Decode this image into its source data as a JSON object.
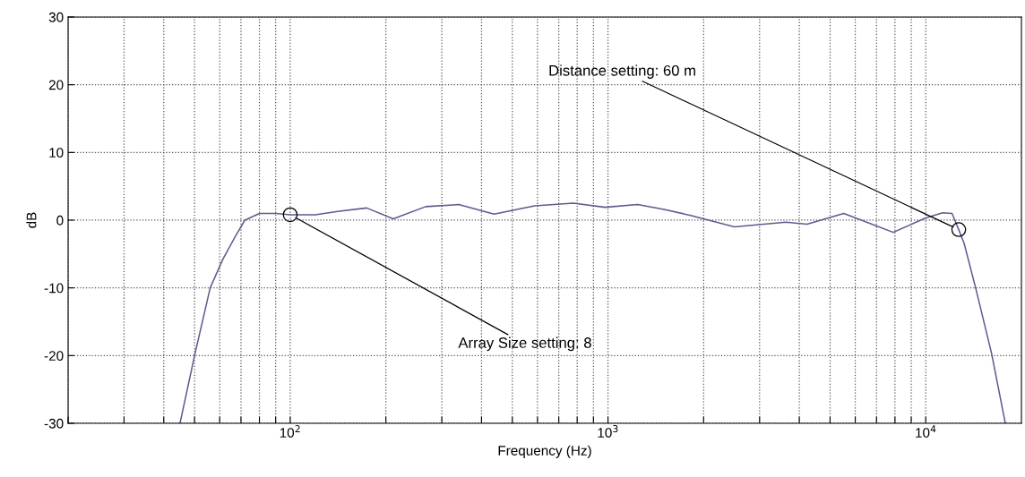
{
  "chart_data": {
    "type": "line",
    "xlabel": "Frequency (Hz)",
    "ylabel": "dB",
    "log": "x",
    "grid": true,
    "marker": "none",
    "line_style": "solid",
    "xlim": [
      20,
      20000
    ],
    "ylim": [
      -30,
      30
    ],
    "xticks": [
      {
        "value": 20,
        "label": null
      },
      {
        "value": 30,
        "label": null
      },
      {
        "value": 40,
        "label": null
      },
      {
        "value": 50,
        "label": null
      },
      {
        "value": 60,
        "label": null
      },
      {
        "value": 70,
        "label": null
      },
      {
        "value": 80,
        "label": null
      },
      {
        "value": 90,
        "label": null
      },
      {
        "value": 100,
        "label": "10$^{2}$"
      },
      {
        "value": 200,
        "label": null
      },
      {
        "value": 300,
        "label": null
      },
      {
        "value": 400,
        "label": null
      },
      {
        "value": 500,
        "label": null
      },
      {
        "value": 600,
        "label": null
      },
      {
        "value": 700,
        "label": null
      },
      {
        "value": 800,
        "label": null
      },
      {
        "value": 900,
        "label": null
      },
      {
        "value": 1000,
        "label": "10$^{3}$"
      },
      {
        "value": 2000,
        "label": null
      },
      {
        "value": 3000,
        "label": null
      },
      {
        "value": 4000,
        "label": null
      },
      {
        "value": 5000,
        "label": null
      },
      {
        "value": 6000,
        "label": null
      },
      {
        "value": 7000,
        "label": null
      },
      {
        "value": 8000,
        "label": null
      },
      {
        "value": 9000,
        "label": null
      },
      {
        "value": 10000,
        "label": "10$^{4}$"
      }
    ],
    "yticks": [
      -30,
      -20,
      -10,
      0,
      10,
      20,
      30
    ],
    "series": [
      {
        "color": "#5c5c8e",
        "x": [
          45,
          50,
          56,
          61.5,
          67,
          72,
          80,
          90,
          100,
          120,
          141,
          174,
          211,
          267,
          339,
          438,
          588,
          777,
          979,
          1240,
          1500,
          1820,
          2500,
          3630,
          4230,
          5520,
          7900,
          9960,
          11300,
          12100,
          12700,
          13200,
          14300,
          16100,
          17800
        ],
        "values": [
          -30,
          -20,
          -10,
          -5.7,
          -2.5,
          0,
          1,
          1,
          0.8,
          0.8,
          1.3,
          1.8,
          0.2,
          2,
          2.3,
          0.9,
          2.1,
          2.5,
          1.9,
          2.3,
          1.6,
          0.7,
          -1,
          -0.3,
          -0.6,
          1,
          -1.8,
          0.3,
          1.1,
          1,
          -1.4,
          -3.4,
          -9.7,
          -19.6,
          -30
        ]
      }
    ],
    "annotations": [
      {
        "text": "Array Size setting: 8",
        "x": 100,
        "y": 0.8
      },
      {
        "text": "Distance setting: 60 m",
        "x": 12700,
        "y": -1.4
      }
    ]
  }
}
